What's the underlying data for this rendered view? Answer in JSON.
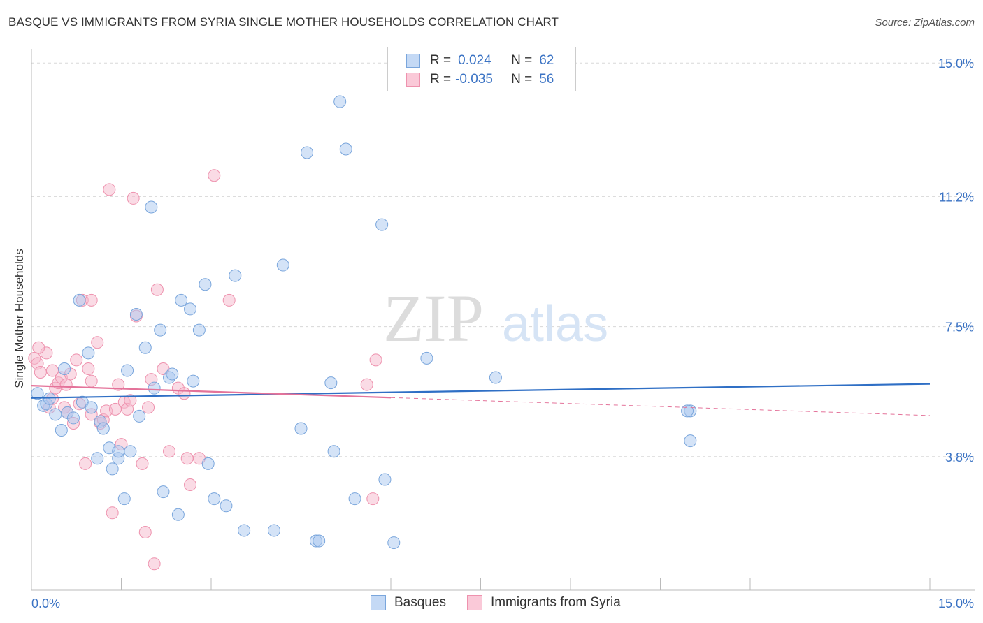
{
  "header": {
    "title": "BASQUE VS IMMIGRANTS FROM SYRIA SINGLE MOTHER HOUSEHOLDS CORRELATION CHART",
    "source": "Source: ZipAtlas.com"
  },
  "legend": {
    "rows": [
      {
        "r_label": "R =",
        "r_value": "0.024",
        "n_label": "N =",
        "n_value": "62"
      },
      {
        "r_label": "R =",
        "r_value": "-0.035",
        "n_label": "N =",
        "n_value": "56"
      }
    ]
  },
  "watermark": {
    "zip": "ZIP",
    "atlas": "atlas"
  },
  "colors": {
    "basque_fill": "#a9c8f0",
    "basque_stroke": "#7aa6dc",
    "basque_line": "#2f6fc5",
    "syria_fill": "#f6b8cc",
    "syria_stroke": "#ee92ae",
    "syria_line": "#e4739a",
    "tick_text": "#3b73c4",
    "grid": "#d8d8d8"
  },
  "chart_data": {
    "type": "scatter",
    "title": "BASQUE VS IMMIGRANTS FROM SYRIA SINGLE MOTHER HOUSEHOLDS CORRELATION CHART",
    "xlabel": "",
    "ylabel": "Single Mother Households",
    "xlim": [
      0,
      15
    ],
    "ylim": [
      0,
      15.6
    ],
    "x_tick_labels": [
      "0.0%",
      "15.0%"
    ],
    "y_ticks": [
      3.8,
      7.5,
      11.2,
      15.0
    ],
    "y_tick_labels": [
      "3.8%",
      "7.5%",
      "11.2%",
      "15.0%"
    ],
    "grid": "horizontal dashed",
    "legend_position": "top-center",
    "series": [
      {
        "name": "Basques",
        "r": 0.024,
        "n": 62,
        "trend": {
          "x": [
            0,
            15
          ],
          "y": [
            5.47,
            5.87
          ]
        },
        "points": [
          [
            0.1,
            5.6
          ],
          [
            0.2,
            5.25
          ],
          [
            0.25,
            5.3
          ],
          [
            0.3,
            5.45
          ],
          [
            0.4,
            5.0
          ],
          [
            0.5,
            4.55
          ],
          [
            0.55,
            6.3
          ],
          [
            0.6,
            5.05
          ],
          [
            0.7,
            4.9
          ],
          [
            0.8,
            8.25
          ],
          [
            0.85,
            5.35
          ],
          [
            0.95,
            6.75
          ],
          [
            1.0,
            5.2
          ],
          [
            1.1,
            3.75
          ],
          [
            1.15,
            4.8
          ],
          [
            1.2,
            4.6
          ],
          [
            1.3,
            4.05
          ],
          [
            1.35,
            3.45
          ],
          [
            1.45,
            3.75
          ],
          [
            1.45,
            3.95
          ],
          [
            1.55,
            2.6
          ],
          [
            1.6,
            6.25
          ],
          [
            1.65,
            3.95
          ],
          [
            1.75,
            7.85
          ],
          [
            1.8,
            4.95
          ],
          [
            1.9,
            6.9
          ],
          [
            2.0,
            10.9
          ],
          [
            2.05,
            5.75
          ],
          [
            2.15,
            7.4
          ],
          [
            2.2,
            2.8
          ],
          [
            2.3,
            6.05
          ],
          [
            2.35,
            6.15
          ],
          [
            2.45,
            2.15
          ],
          [
            2.5,
            8.25
          ],
          [
            2.65,
            8.0
          ],
          [
            2.7,
            5.95
          ],
          [
            2.8,
            7.4
          ],
          [
            2.9,
            8.7
          ],
          [
            2.95,
            3.6
          ],
          [
            3.05,
            2.6
          ],
          [
            3.25,
            2.4
          ],
          [
            3.4,
            8.95
          ],
          [
            3.55,
            1.7
          ],
          [
            4.05,
            1.7
          ],
          [
            4.2,
            9.25
          ],
          [
            4.5,
            4.6
          ],
          [
            4.6,
            12.45
          ],
          [
            4.75,
            1.4
          ],
          [
            4.8,
            1.4
          ],
          [
            5.0,
            5.9
          ],
          [
            5.05,
            3.95
          ],
          [
            5.15,
            13.9
          ],
          [
            5.25,
            12.55
          ],
          [
            5.4,
            2.6
          ],
          [
            5.85,
            10.4
          ],
          [
            5.9,
            3.15
          ],
          [
            6.05,
            1.35
          ],
          [
            6.6,
            6.6
          ],
          [
            7.75,
            6.05
          ],
          [
            11.0,
            5.1
          ],
          [
            10.95,
            5.1
          ],
          [
            11.0,
            4.25
          ]
        ]
      },
      {
        "name": "Immigrants from Syria",
        "r": -0.035,
        "n": 56,
        "trend": {
          "x": [
            0,
            6.0
          ],
          "y": [
            5.82,
            5.48
          ]
        },
        "trend_extension": {
          "x": [
            6.0,
            15
          ],
          "y": [
            5.48,
            4.97
          ]
        },
        "points": [
          [
            0.05,
            6.6
          ],
          [
            0.1,
            6.45
          ],
          [
            0.15,
            6.2
          ],
          [
            0.25,
            6.75
          ],
          [
            0.3,
            5.2
          ],
          [
            0.35,
            5.45
          ],
          [
            0.4,
            5.75
          ],
          [
            0.45,
            5.9
          ],
          [
            0.5,
            6.05
          ],
          [
            0.55,
            5.2
          ],
          [
            0.6,
            5.05
          ],
          [
            0.65,
            6.15
          ],
          [
            0.7,
            4.75
          ],
          [
            0.75,
            6.55
          ],
          [
            0.8,
            5.3
          ],
          [
            0.85,
            8.25
          ],
          [
            0.9,
            3.6
          ],
          [
            0.95,
            6.3
          ],
          [
            1.0,
            5.0
          ],
          [
            1.0,
            8.25
          ],
          [
            1.1,
            7.05
          ],
          [
            1.15,
            4.75
          ],
          [
            1.2,
            4.85
          ],
          [
            1.25,
            5.1
          ],
          [
            1.3,
            11.4
          ],
          [
            1.35,
            2.2
          ],
          [
            1.4,
            5.15
          ],
          [
            1.45,
            5.85
          ],
          [
            1.5,
            4.15
          ],
          [
            1.55,
            5.35
          ],
          [
            1.6,
            5.15
          ],
          [
            1.65,
            5.4
          ],
          [
            1.7,
            11.15
          ],
          [
            1.75,
            7.8
          ],
          [
            1.85,
            3.6
          ],
          [
            1.9,
            1.65
          ],
          [
            1.95,
            5.2
          ],
          [
            2.0,
            6.0
          ],
          [
            2.05,
            0.75
          ],
          [
            2.1,
            8.55
          ],
          [
            2.2,
            6.3
          ],
          [
            2.3,
            3.95
          ],
          [
            2.45,
            5.75
          ],
          [
            2.55,
            5.6
          ],
          [
            2.6,
            3.75
          ],
          [
            2.65,
            3.0
          ],
          [
            3.05,
            11.8
          ],
          [
            3.3,
            8.25
          ],
          [
            5.6,
            5.85
          ],
          [
            5.75,
            6.55
          ],
          [
            5.7,
            2.6
          ],
          [
            0.12,
            6.9
          ],
          [
            0.35,
            6.25
          ],
          [
            0.58,
            5.85
          ],
          [
            1.0,
            5.95
          ],
          [
            2.8,
            3.75
          ]
        ]
      }
    ]
  },
  "bottom_legend": {
    "items": [
      {
        "label": "Basques"
      },
      {
        "label": "Immigrants from Syria"
      }
    ]
  }
}
